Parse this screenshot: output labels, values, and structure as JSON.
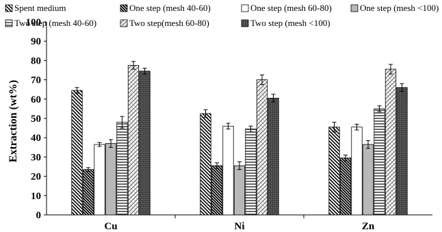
{
  "chart_data": {
    "type": "bar",
    "title": "",
    "xlabel": "",
    "ylabel": "Extraction (wt%)",
    "ylim": [
      0,
      100
    ],
    "yticks": [
      0,
      10,
      20,
      30,
      40,
      50,
      60,
      70,
      80,
      90,
      100
    ],
    "grid": false,
    "legend_position": "top",
    "categories": [
      "Cu",
      "Ni",
      "Zn"
    ],
    "series": [
      {
        "name": "Spent medium",
        "values": [
          64.5,
          52.5,
          45.5
        ],
        "errors": [
          1.5,
          2.0,
          2.5
        ],
        "pattern": "diag-back-dense"
      },
      {
        "name": "One step (mesh 40-60)",
        "values": [
          23.5,
          25.5,
          29.5
        ],
        "errors": [
          1.0,
          1.5,
          1.5
        ],
        "pattern": "diag-back-dense-fill"
      },
      {
        "name": "One step (mesh 60-80)",
        "values": [
          36.5,
          46.0,
          45.5
        ],
        "errors": [
          1.0,
          1.5,
          1.5
        ],
        "pattern": "white"
      },
      {
        "name": "One step  (mesh <100)",
        "values": [
          37.0,
          25.5,
          36.5
        ],
        "errors": [
          2.0,
          2.0,
          2.0
        ],
        "pattern": "gray"
      },
      {
        "name": "Two step (mesh 40-60)",
        "values": [
          48.0,
          44.5,
          55.0
        ],
        "errors": [
          3.0,
          1.5,
          1.5
        ],
        "pattern": "horizontal"
      },
      {
        "name": "Two step(mesh 60-80)",
        "values": [
          77.5,
          70.0,
          75.5
        ],
        "errors": [
          2.0,
          2.5,
          2.5
        ],
        "pattern": "crosshatch"
      },
      {
        "name": "Two step (mesh <100)",
        "values": [
          74.5,
          60.5,
          66.0
        ],
        "errors": [
          1.5,
          2.0,
          2.0
        ],
        "pattern": "dark-dots"
      }
    ]
  }
}
